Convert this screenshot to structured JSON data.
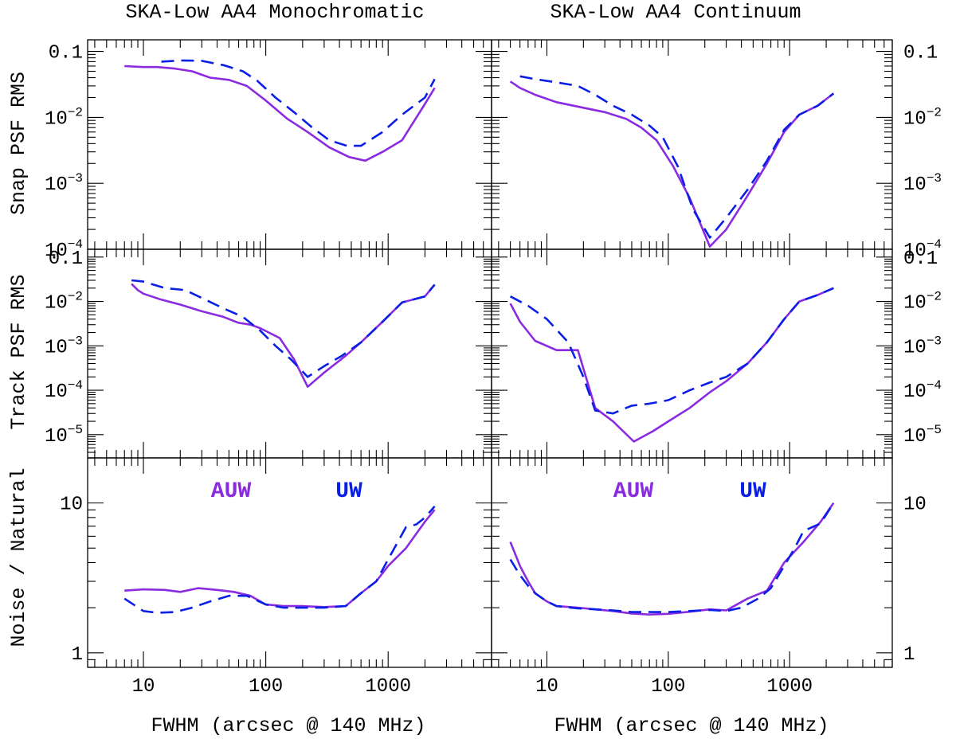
{
  "figure": {
    "colors": {
      "auw": "#8a2be2",
      "uw": "#0a1fe6",
      "axes": "#000000"
    },
    "legend": {
      "auw": "AUW",
      "uw": "UW"
    }
  },
  "chart_data": [
    {
      "type": "line",
      "title": "SKA-Low AA4 Monochromatic",
      "xlabel": "FWHM (arcsec @ 140 MHz)",
      "xscale": "log",
      "xlim": [
        3.5,
        7000
      ],
      "rows": [
        {
          "ylabel": "Snap PSF RMS",
          "ylim": [
            0.0001,
            0.15
          ],
          "series": [
            {
              "name": "AUW",
              "x": [
                7,
                10,
                13,
                18,
                25,
                35,
                50,
                70,
                100,
                150,
                220,
                330,
                480,
                650,
                900,
                1300,
                2000,
                2400
              ],
              "y": [
                0.06,
                0.058,
                0.058,
                0.055,
                0.05,
                0.04,
                0.037,
                0.03,
                0.018,
                0.0095,
                0.006,
                0.0035,
                0.0025,
                0.0022,
                0.003,
                0.0045,
                0.016,
                0.028
              ]
            },
            {
              "name": "UW",
              "x": [
                14,
                20,
                30,
                45,
                65,
                85,
                120,
                170,
                240,
                330,
                460,
                600,
                900,
                1300,
                2000,
                2400
              ],
              "y": [
                0.07,
                0.073,
                0.072,
                0.062,
                0.05,
                0.036,
                0.02,
                0.012,
                0.007,
                0.0045,
                0.0037,
                0.0037,
                0.006,
                0.011,
                0.02,
                0.038
              ]
            }
          ]
        },
        {
          "ylabel": "Track PSF RMS",
          "ylim": [
            3e-06,
            0.15
          ],
          "series": [
            {
              "name": "AUW",
              "x": [
                8,
                9,
                10,
                14,
                20,
                30,
                45,
                60,
                75,
                90,
                130,
                170,
                220,
                300,
                450,
                600,
                900,
                1300,
                2000,
                2400
              ],
              "y": [
                0.025,
                0.018,
                0.015,
                0.011,
                0.0085,
                0.006,
                0.0045,
                0.0033,
                0.003,
                0.0025,
                0.0015,
                0.0005,
                0.00012,
                0.00025,
                0.0006,
                0.0012,
                0.0035,
                0.0095,
                0.013,
                0.024
              ]
            },
            {
              "name": "UW",
              "x": [
                8,
                10,
                15,
                22,
                30,
                45,
                65,
                90,
                120,
                160,
                220,
                300,
                420,
                600,
                900,
                1300,
                2000,
                2400
              ],
              "y": [
                0.03,
                0.028,
                0.02,
                0.018,
                0.012,
                0.007,
                0.0045,
                0.0022,
                0.001,
                0.0005,
                0.0002,
                0.00035,
                0.0006,
                0.0012,
                0.0035,
                0.0095,
                0.013,
                0.024
              ]
            }
          ]
        },
        {
          "ylabel": "Noise / Natural",
          "ylim": [
            0.8,
            20
          ],
          "series": [
            {
              "name": "AUW",
              "x": [
                7,
                10,
                15,
                20,
                28,
                40,
                55,
                75,
                100,
                140,
                200,
                300,
                450,
                600,
                800,
                1000,
                1400,
                2000,
                2400
              ],
              "y": [
                2.6,
                2.65,
                2.63,
                2.55,
                2.7,
                2.63,
                2.55,
                2.4,
                2.1,
                2.05,
                2.05,
                2.02,
                2.05,
                2.5,
                3,
                3.8,
                5,
                7.5,
                9
              ]
            },
            {
              "name": "UW",
              "x": [
                7,
                10,
                13,
                18,
                25,
                35,
                50,
                70,
                100,
                140,
                200,
                300,
                450,
                600,
                800,
                1000,
                1200,
                1400,
                1700,
                2000,
                2400
              ],
              "y": [
                2.3,
                1.9,
                1.85,
                1.87,
                2.0,
                2.2,
                2.4,
                2.4,
                2.1,
                2.0,
                2.0,
                2.0,
                2.05,
                2.5,
                3,
                4.2,
                5.5,
                6.9,
                7.2,
                8,
                9.5
              ]
            }
          ]
        }
      ]
    },
    {
      "type": "line",
      "title": "SKA-Low AA4 Continuum",
      "xlabel": "FWHM (arcsec @ 140 MHz)",
      "xscale": "log",
      "xlim": [
        3.5,
        7000
      ],
      "rows": [
        {
          "ylabel": "Snap PSF RMS",
          "ylim": [
            0.0001,
            0.15
          ],
          "series": [
            {
              "name": "AUW",
              "x": [
                5,
                6,
                8,
                12,
                20,
                30,
                45,
                60,
                80,
                110,
                150,
                220,
                300,
                450,
                650,
                900,
                1200,
                1700,
                2300
              ],
              "y": [
                0.035,
                0.028,
                0.022,
                0.017,
                0.014,
                0.012,
                0.0095,
                0.007,
                0.0045,
                0.0018,
                0.0006,
                0.00011,
                0.0002,
                0.00065,
                0.002,
                0.006,
                0.011,
                0.015,
                0.023
              ]
            },
            {
              "name": "UW",
              "x": [
                6,
                8,
                12,
                18,
                25,
                35,
                50,
                70,
                90,
                120,
                160,
                220,
                300,
                450,
                650,
                900,
                1200,
                1700,
                2300
              ],
              "y": [
                0.042,
                0.038,
                0.034,
                0.03,
                0.022,
                0.015,
                0.011,
                0.0075,
                0.005,
                0.0018,
                0.0004,
                0.00015,
                0.0003,
                0.0008,
                0.0022,
                0.0065,
                0.011,
                0.015,
                0.023
              ]
            }
          ]
        },
        {
          "ylabel": "Track PSF RMS",
          "ylim": [
            3e-06,
            0.15
          ],
          "series": [
            {
              "name": "AUW",
              "x": [
                5,
                6,
                8,
                12,
                18,
                25,
                35,
                52,
                75,
                100,
                150,
                220,
                300,
                450,
                650,
                900,
                1200,
                1700,
                2300
              ],
              "y": [
                0.009,
                0.0035,
                0.0013,
                0.0008,
                0.0008,
                4e-05,
                2e-05,
                7e-06,
                1.2e-05,
                2e-05,
                4e-05,
                9e-05,
                0.00016,
                0.0004,
                0.0012,
                0.004,
                0.01,
                0.014,
                0.02
              ]
            },
            {
              "name": "UW",
              "x": [
                5,
                7,
                10,
                15,
                20,
                25,
                35,
                50,
                70,
                100,
                150,
                220,
                300,
                450,
                650,
                900,
                1200,
                1700,
                2300
              ],
              "y": [
                0.013,
                0.008,
                0.004,
                0.0012,
                0.0002,
                3.5e-05,
                3e-05,
                4.5e-05,
                5e-05,
                6e-05,
                0.0001,
                0.00015,
                0.0002,
                0.0004,
                0.0012,
                0.004,
                0.01,
                0.014,
                0.02
              ]
            }
          ]
        },
        {
          "ylabel": "Noise / Natural",
          "ylim": [
            0.8,
            20
          ],
          "series": [
            {
              "name": "AUW",
              "x": [
                5,
                6,
                7,
                8,
                10,
                12,
                18,
                25,
                35,
                50,
                70,
                100,
                150,
                220,
                300,
                450,
                650,
                900,
                1300,
                1800,
                2300
              ],
              "y": [
                5.5,
                3.8,
                3.0,
                2.5,
                2.2,
                2.05,
                2.0,
                1.95,
                1.9,
                1.83,
                1.8,
                1.82,
                1.88,
                1.95,
                1.92,
                2.3,
                2.6,
                4,
                5.5,
                7.5,
                10
              ]
            },
            {
              "name": "UW",
              "x": [
                5,
                6,
                7,
                8,
                10,
                12,
                18,
                25,
                35,
                50,
                70,
                100,
                150,
                220,
                300,
                400,
                550,
                700,
                900,
                1100,
                1300,
                1800,
                2300
              ],
              "y": [
                4.2,
                3.3,
                2.8,
                2.5,
                2.2,
                2.05,
                1.98,
                1.95,
                1.92,
                1.87,
                1.87,
                1.87,
                1.9,
                1.93,
                1.9,
                2.0,
                2.3,
                2.7,
                3.8,
                5,
                6.5,
                7.3,
                10
              ]
            }
          ]
        }
      ]
    }
  ]
}
